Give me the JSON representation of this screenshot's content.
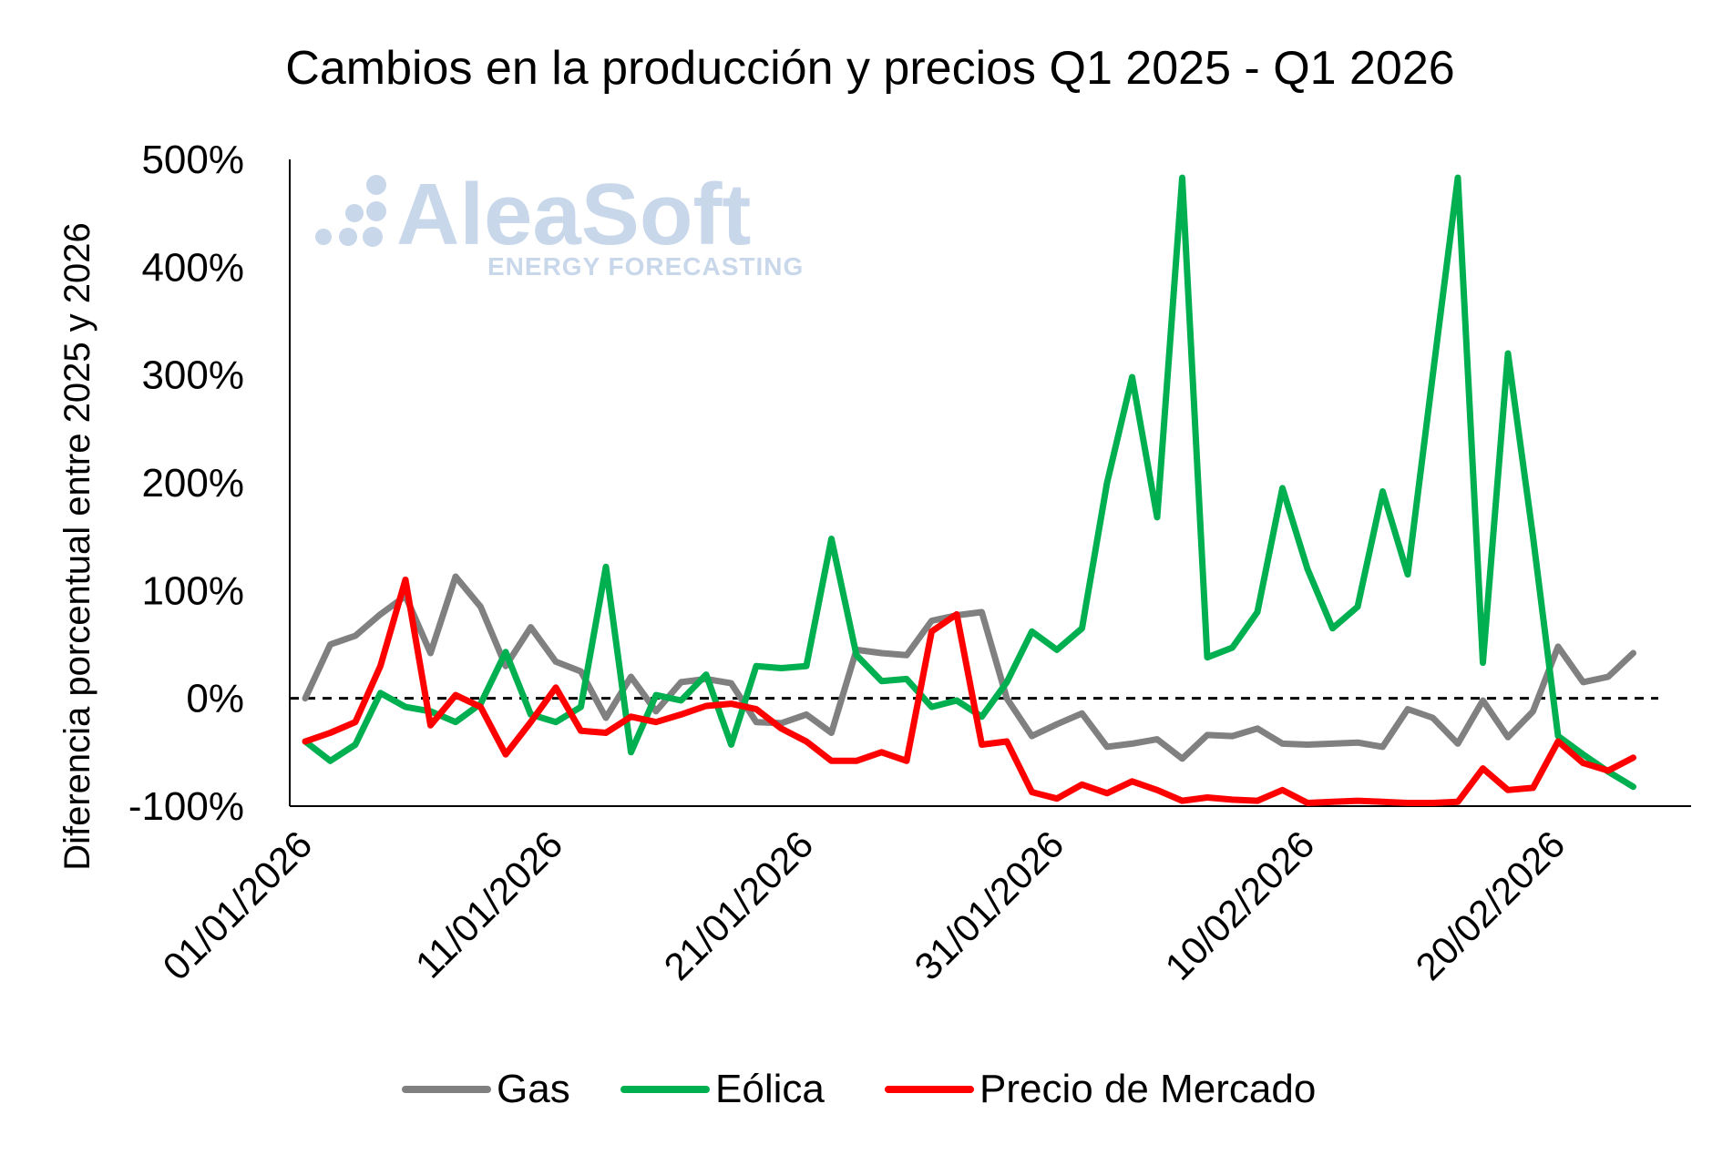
{
  "watermark": {
    "brand": "AleaSoft",
    "tagline": "ENERGY FORECASTING"
  },
  "chart_data": {
    "type": "line",
    "title": "Cambios en la producción y precios Q1 2025 - Q1 2026",
    "ylabel": "Diferencia porcentual entre 2025 y 2026",
    "xlabel": "",
    "ylim": [
      -100,
      500
    ],
    "yticks": [
      -100,
      0,
      100,
      200,
      300,
      400,
      500
    ],
    "ytick_labels": [
      "-100%",
      "0%",
      "100%",
      "200%",
      "300%",
      "400%",
      "500%"
    ],
    "x_start": "01/01/2026",
    "x": [
      "01/01/2026",
      "02/01/2026",
      "03/01/2026",
      "04/01/2026",
      "05/01/2026",
      "06/01/2026",
      "07/01/2026",
      "08/01/2026",
      "09/01/2026",
      "10/01/2026",
      "11/01/2026",
      "12/01/2026",
      "13/01/2026",
      "14/01/2026",
      "15/01/2026",
      "16/01/2026",
      "17/01/2026",
      "18/01/2026",
      "19/01/2026",
      "20/01/2026",
      "21/01/2026",
      "22/01/2026",
      "23/01/2026",
      "24/01/2026",
      "25/01/2026",
      "26/01/2026",
      "27/01/2026",
      "28/01/2026",
      "29/01/2026",
      "30/01/2026",
      "31/01/2026",
      "01/02/2026",
      "02/02/2026",
      "03/02/2026",
      "04/02/2026",
      "05/02/2026",
      "06/02/2026",
      "07/02/2026",
      "08/02/2026",
      "09/02/2026",
      "10/02/2026",
      "11/02/2026",
      "12/02/2026",
      "13/02/2026",
      "14/02/2026",
      "15/02/2026",
      "16/02/2026",
      "17/02/2026",
      "18/02/2026",
      "19/02/2026",
      "20/02/2026",
      "21/02/2026",
      "22/02/2026",
      "23/02/2026",
      "24/02/2026"
    ],
    "xtick_labels": [
      "01/01/2026",
      "11/01/2026",
      "21/01/2026",
      "31/01/2026",
      "10/02/2026",
      "20/02/2026"
    ],
    "xtick_values": [
      "01/01/2026",
      "11/01/2026",
      "21/01/2026",
      "31/01/2026",
      "10/02/2026",
      "20/02/2026"
    ],
    "reference_line": {
      "y": 0,
      "style": "dashed",
      "color": "#000000"
    },
    "legend_position": "bottom",
    "series": [
      {
        "name": "Gas",
        "color": "#808080",
        "values": [
          0,
          50,
          58,
          78,
          95,
          42,
          113,
          85,
          30,
          66,
          34,
          25,
          -18,
          20,
          -12,
          15,
          18,
          14,
          -22,
          -23,
          -15,
          -32,
          45,
          42,
          40,
          72,
          77,
          80,
          0,
          -35,
          -24,
          -14,
          -45,
          -42,
          -38,
          -56,
          -34,
          -35,
          -28,
          -42,
          -43,
          -42,
          -41,
          -45,
          -10,
          -18,
          -42,
          -2,
          -36,
          -12,
          48,
          15,
          20,
          42,
          null
        ]
      },
      {
        "name": "Eólica",
        "color": "#00b050",
        "values": [
          -40,
          -58,
          -43,
          5,
          -8,
          -12,
          -22,
          -5,
          43,
          -15,
          -22,
          -8,
          122,
          -50,
          3,
          -2,
          22,
          -43,
          30,
          28,
          30,
          148,
          40,
          16,
          18,
          -8,
          -2,
          -17,
          15,
          62,
          45,
          65,
          200,
          298,
          168,
          483,
          38,
          47,
          80,
          195,
          120,
          65,
          85,
          192,
          115,
          300,
          483,
          33,
          320,
          150,
          -35,
          -52,
          -68,
          -82,
          null
        ]
      },
      {
        "name": "Precio de Mercado",
        "color": "#ff0000",
        "values": [
          -40,
          -32,
          -22,
          30,
          110,
          -25,
          3,
          -8,
          -52,
          -22,
          10,
          -30,
          -32,
          -17,
          -22,
          -15,
          -7,
          -5,
          -10,
          -28,
          -40,
          -58,
          -58,
          -50,
          -58,
          62,
          78,
          -43,
          -40,
          -87,
          -93,
          -80,
          -88,
          -77,
          -85,
          -95,
          -92,
          -94,
          -95,
          -85,
          -97,
          -96,
          -95,
          -96,
          -97,
          -97,
          -96,
          -65,
          -85,
          -83,
          -40,
          -60,
          -67,
          -55,
          null
        ]
      }
    ]
  }
}
